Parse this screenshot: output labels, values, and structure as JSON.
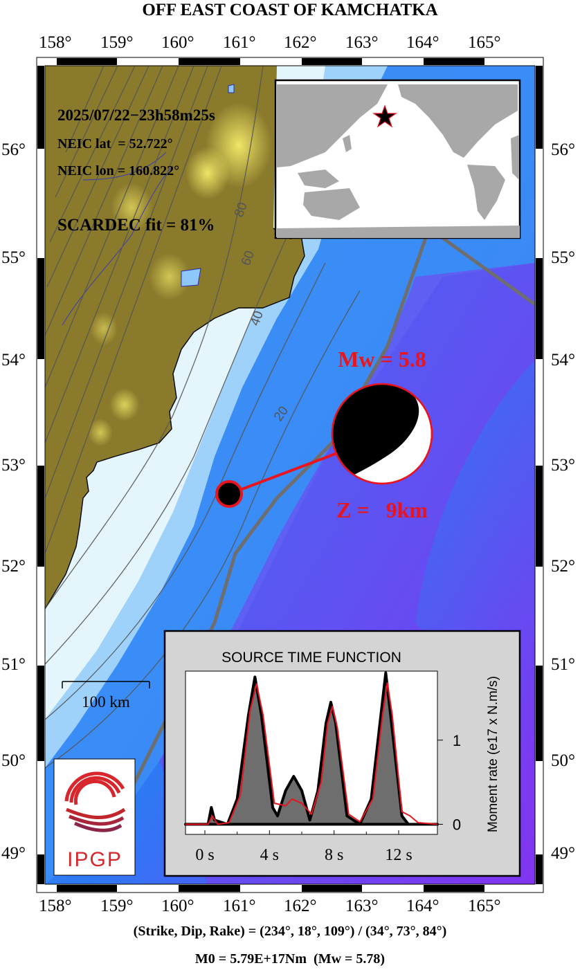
{
  "title": "OFF EAST COAST OF KAMCHATKA",
  "lon_labels": [
    "158°",
    "159°",
    "160°",
    "161°",
    "162°",
    "163°",
    "164°",
    "165°"
  ],
  "lat_labels": [
    "56°",
    "55°",
    "54°",
    "53°",
    "52°",
    "51°",
    "50°",
    "49°"
  ],
  "event": {
    "datetime": "2025/07/22−23h58m25s",
    "lat_line": "NEIC lat  = 52.722°",
    "lon_line": "NEIC lon = 160.822°",
    "fit_line": "SCARDEC fit = 81%",
    "mw_label": "Mw = 5.8",
    "depth_label": "Z =   9km",
    "lat": 52.722,
    "lon": 160.822
  },
  "contours": [
    "80",
    "60",
    "40",
    "20"
  ],
  "scale_bar": "100 km",
  "logo_text": "IPGP",
  "stf": {
    "title": "SOURCE TIME FUNCTION",
    "ylabel": "Moment rate (e17 x N.m/s)",
    "x_ticks": [
      "0 s",
      "4 s",
      "8 s",
      "12 s"
    ],
    "y_ticks": [
      "0",
      "1"
    ]
  },
  "footer": {
    "mechanism": "(Strike, Dip, Rake) = (234°, 18°, 109°) / (34°, 73°, 84°)",
    "moment": "M0 = 5.79E+17Nm  (Mw = 5.78)"
  },
  "colors": {
    "accent_red": "#e8141e",
    "land": "#8a7a2c",
    "deep_ocean": "#8a2cf0",
    "mid_ocean": "#3a8cf6",
    "shelf": "#e6f6fb",
    "trench": "#6e6e6e"
  },
  "chart_data": {
    "type": "area",
    "title": "SOURCE TIME FUNCTION",
    "xlabel": "",
    "ylabel": "Moment rate (e17 x N.m/s)",
    "xlim": [
      -1.2,
      14.4
    ],
    "ylim": [
      -0.12,
      1.82
    ],
    "x_ticks": [
      0,
      4,
      8,
      12
    ],
    "y_ticks": [
      0,
      1
    ],
    "series": [
      {
        "values": [
          [
            -1.2,
            0
          ],
          [
            0.2,
            0
          ],
          [
            0.4,
            0.2
          ],
          [
            0.6,
            0.05
          ],
          [
            1.4,
            0
          ],
          [
            2.0,
            0.3
          ],
          [
            2.7,
            1.3
          ],
          [
            3.1,
            1.75
          ],
          [
            3.5,
            1.3
          ],
          [
            4.2,
            0.2
          ],
          [
            4.5,
            0.1
          ],
          [
            5.0,
            0.4
          ],
          [
            5.5,
            0.57
          ],
          [
            6.0,
            0.4
          ],
          [
            6.5,
            0.05
          ],
          [
            7.0,
            0.4
          ],
          [
            7.5,
            1.2
          ],
          [
            7.8,
            1.45
          ],
          [
            8.1,
            1.2
          ],
          [
            8.8,
            0.1
          ],
          [
            9.6,
            0
          ],
          [
            10.3,
            0.3
          ],
          [
            10.9,
            1.3
          ],
          [
            11.2,
            1.8
          ],
          [
            11.5,
            1.3
          ],
          [
            12.2,
            0.1
          ],
          [
            12.6,
            0
          ],
          [
            14.4,
            0
          ]
        ]
      },
      {
        "values": [
          [
            -1.2,
            0
          ],
          [
            0.2,
            0
          ],
          [
            0.45,
            0.1
          ],
          [
            0.8,
            0
          ],
          [
            1.5,
            0.02
          ],
          [
            2.2,
            0.35
          ],
          [
            2.8,
            1.35
          ],
          [
            3.2,
            1.67
          ],
          [
            3.6,
            1.3
          ],
          [
            4.3,
            0.25
          ],
          [
            5.0,
            0.22
          ],
          [
            5.4,
            0.3
          ],
          [
            6.0,
            0.25
          ],
          [
            6.6,
            0.12
          ],
          [
            7.2,
            0.5
          ],
          [
            7.6,
            1.2
          ],
          [
            7.9,
            1.4
          ],
          [
            8.2,
            1.15
          ],
          [
            8.9,
            0.12
          ],
          [
            9.6,
            0.03
          ],
          [
            10.4,
            0.3
          ],
          [
            11.0,
            1.3
          ],
          [
            11.3,
            1.68
          ],
          [
            11.6,
            1.3
          ],
          [
            12.2,
            0.15
          ],
          [
            12.7,
            0.1
          ],
          [
            13.2,
            0.02
          ],
          [
            14.4,
            0
          ]
        ]
      }
    ]
  }
}
